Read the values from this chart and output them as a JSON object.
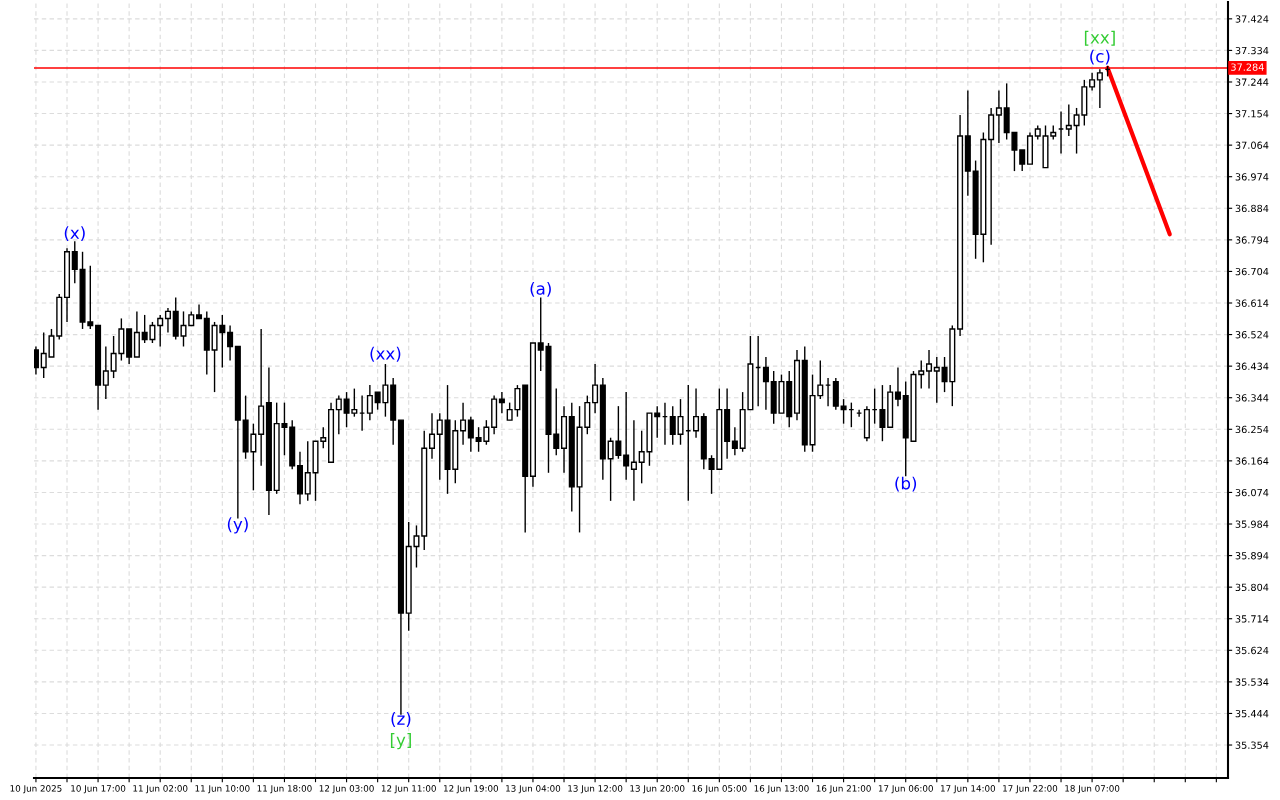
{
  "chart_data": {
    "type": "candlestick",
    "categories": [
      "10 Jun 2025",
      null,
      null,
      null,
      null,
      null,
      null,
      null,
      "10 Jun 17:00",
      null,
      null,
      null,
      null,
      null,
      null,
      null,
      "11 Jun 02:00",
      null,
      null,
      null,
      null,
      null,
      null,
      null,
      "11 Jun 10:00",
      null,
      null,
      null,
      null,
      null,
      null,
      null,
      "11 Jun 18:00",
      null,
      null,
      null,
      null,
      null,
      null,
      null,
      "12 Jun 03:00",
      null,
      null,
      null,
      null,
      null,
      null,
      null,
      "12 Jun 11:00",
      null,
      null,
      null,
      null,
      null,
      null,
      null,
      "12 Jun 19:00",
      null,
      null,
      null,
      null,
      null,
      null,
      null,
      "13 Jun 04:00",
      null,
      null,
      null,
      null,
      null,
      null,
      null,
      "13 Jun 12:00",
      null,
      null,
      null,
      null,
      null,
      null,
      null,
      "13 Jun 20:00",
      null,
      null,
      null,
      null,
      null,
      null,
      null,
      "16 Jun 05:00",
      null,
      null,
      null,
      null,
      null,
      null,
      null,
      "16 Jun 13:00",
      null,
      null,
      null,
      null,
      null,
      null,
      null,
      "16 Jun 21:00",
      null,
      null,
      null,
      null,
      null,
      null,
      null,
      "17 Jun 06:00",
      null,
      null,
      null,
      null,
      null,
      null,
      null,
      "17 Jun 14:00",
      null,
      null,
      null,
      null,
      null,
      null,
      null,
      "17 Jun 22:00",
      null,
      null,
      null,
      null,
      null,
      null,
      null,
      "18 Jun 07:00",
      null,
      null,
      null,
      null,
      null,
      null,
      null,
      null,
      null,
      null,
      null,
      null,
      null,
      null,
      null,
      null,
      null
    ],
    "ohlc": [
      [
        36.48,
        36.49,
        36.41,
        36.43
      ],
      [
        36.43,
        36.53,
        36.4,
        36.47
      ],
      [
        36.46,
        36.54,
        36.46,
        36.52
      ],
      [
        36.52,
        36.64,
        36.51,
        36.63
      ],
      [
        36.63,
        36.77,
        36.56,
        36.76
      ],
      [
        36.76,
        36.79,
        36.67,
        36.71
      ],
      [
        36.71,
        36.76,
        36.54,
        36.56
      ],
      [
        36.56,
        36.72,
        36.54,
        36.55
      ],
      [
        36.55,
        36.55,
        36.31,
        36.38
      ],
      [
        36.38,
        36.49,
        36.34,
        36.42
      ],
      [
        36.42,
        36.52,
        36.4,
        36.47
      ],
      [
        36.47,
        36.57,
        36.45,
        36.54
      ],
      [
        36.54,
        36.54,
        36.44,
        36.46
      ],
      [
        36.46,
        36.59,
        36.46,
        36.53
      ],
      [
        36.53,
        36.58,
        36.5,
        36.51
      ],
      [
        36.51,
        36.56,
        36.5,
        36.55
      ],
      [
        36.55,
        36.58,
        36.49,
        36.57
      ],
      [
        36.57,
        36.6,
        36.53,
        36.59
      ],
      [
        36.59,
        36.63,
        36.51,
        36.52
      ],
      [
        36.52,
        36.59,
        36.49,
        36.55
      ],
      [
        36.55,
        36.59,
        36.55,
        36.58
      ],
      [
        36.58,
        36.61,
        36.57,
        36.57
      ],
      [
        36.57,
        36.59,
        36.41,
        36.48
      ],
      [
        36.48,
        36.56,
        36.36,
        36.55
      ],
      [
        36.55,
        36.58,
        36.43,
        36.53
      ],
      [
        36.53,
        36.55,
        36.45,
        36.49
      ],
      [
        36.49,
        36.49,
        36.0,
        36.28
      ],
      [
        36.28,
        36.35,
        36.17,
        36.19
      ],
      [
        36.19,
        36.27,
        36.08,
        36.24
      ],
      [
        36.24,
        36.54,
        36.15,
        36.32
      ],
      [
        36.33,
        36.43,
        36.01,
        36.08
      ],
      [
        36.08,
        36.33,
        36.07,
        36.27
      ],
      [
        36.27,
        36.33,
        36.18,
        36.26
      ],
      [
        36.26,
        36.28,
        36.14,
        36.15
      ],
      [
        36.15,
        36.19,
        36.04,
        36.07
      ],
      [
        36.07,
        36.22,
        36.05,
        36.13
      ],
      [
        36.13,
        36.22,
        36.05,
        36.22
      ],
      [
        36.22,
        36.26,
        36.2,
        36.23
      ],
      [
        36.16,
        36.33,
        36.16,
        36.31
      ],
      [
        36.31,
        36.35,
        36.24,
        36.34
      ],
      [
        36.34,
        36.36,
        36.26,
        36.3
      ],
      [
        36.3,
        36.37,
        36.29,
        36.31
      ],
      [
        36.3,
        36.35,
        36.25,
        36.3
      ],
      [
        36.3,
        36.38,
        36.28,
        36.35
      ],
      [
        36.36,
        36.36,
        36.31,
        36.33
      ],
      [
        36.33,
        36.44,
        36.29,
        36.38
      ],
      [
        36.38,
        36.4,
        36.21,
        36.28
      ],
      [
        36.28,
        36.28,
        35.44,
        35.73
      ],
      [
        35.73,
        35.99,
        35.68,
        35.92
      ],
      [
        35.92,
        35.98,
        35.86,
        35.95
      ],
      [
        35.95,
        36.25,
        35.91,
        36.2
      ],
      [
        36.2,
        36.3,
        36.17,
        36.24
      ],
      [
        36.24,
        36.3,
        36.11,
        36.28
      ],
      [
        36.28,
        36.38,
        36.07,
        36.14
      ],
      [
        36.14,
        36.28,
        36.1,
        36.25
      ],
      [
        36.25,
        36.33,
        36.21,
        36.28
      ],
      [
        36.28,
        36.29,
        36.19,
        36.23
      ],
      [
        36.23,
        36.26,
        36.19,
        36.22
      ],
      [
        36.22,
        36.28,
        36.21,
        36.26
      ],
      [
        36.26,
        36.35,
        36.24,
        36.34
      ],
      [
        36.34,
        36.36,
        36.3,
        36.33
      ],
      [
        36.28,
        36.33,
        36.28,
        36.31
      ],
      [
        36.31,
        36.38,
        36.29,
        36.37
      ],
      [
        36.38,
        36.38,
        35.96,
        36.12
      ],
      [
        36.12,
        36.5,
        36.09,
        36.5
      ],
      [
        36.5,
        36.63,
        36.42,
        36.48
      ],
      [
        36.49,
        36.5,
        36.13,
        36.24
      ],
      [
        36.24,
        36.37,
        36.18,
        36.2
      ],
      [
        36.2,
        36.32,
        36.13,
        36.29
      ],
      [
        36.29,
        36.33,
        36.02,
        36.09
      ],
      [
        36.09,
        36.32,
        35.96,
        36.26
      ],
      [
        36.26,
        36.35,
        36.24,
        36.33
      ],
      [
        36.33,
        36.44,
        36.3,
        36.38
      ],
      [
        36.38,
        36.4,
        36.11,
        36.17
      ],
      [
        36.17,
        36.23,
        36.05,
        36.22
      ],
      [
        36.22,
        36.32,
        36.17,
        36.18
      ],
      [
        36.18,
        36.36,
        36.11,
        36.15
      ],
      [
        36.14,
        36.28,
        36.05,
        36.16
      ],
      [
        36.16,
        36.25,
        36.1,
        36.19
      ],
      [
        36.19,
        36.3,
        36.15,
        36.3
      ],
      [
        36.3,
        36.32,
        36.23,
        36.29
      ],
      [
        36.29,
        36.33,
        36.21,
        36.29
      ],
      [
        36.29,
        36.32,
        36.21,
        36.24
      ],
      [
        36.24,
        36.34,
        36.21,
        36.29
      ],
      [
        36.25,
        36.38,
        36.05,
        36.25
      ],
      [
        36.25,
        36.37,
        36.23,
        36.29
      ],
      [
        36.29,
        36.3,
        36.14,
        36.17
      ],
      [
        36.17,
        36.18,
        36.07,
        36.14
      ],
      [
        36.14,
        36.37,
        36.14,
        36.31
      ],
      [
        36.31,
        36.37,
        36.17,
        36.22
      ],
      [
        36.22,
        36.26,
        36.18,
        36.2
      ],
      [
        36.2,
        36.36,
        36.19,
        36.31
      ],
      [
        36.31,
        36.52,
        36.31,
        36.44
      ],
      [
        36.43,
        36.52,
        36.32,
        36.43
      ],
      [
        36.43,
        36.46,
        36.31,
        36.39
      ],
      [
        36.39,
        36.42,
        36.27,
        36.3
      ],
      [
        36.3,
        36.41,
        36.3,
        36.39
      ],
      [
        36.39,
        36.42,
        36.26,
        36.29
      ],
      [
        36.3,
        36.48,
        36.28,
        36.45
      ],
      [
        36.45,
        36.49,
        36.19,
        36.21
      ],
      [
        36.21,
        36.41,
        36.19,
        36.35
      ],
      [
        36.35,
        36.45,
        36.34,
        36.38
      ],
      [
        36.38,
        36.4,
        36.32,
        36.38
      ],
      [
        36.39,
        36.4,
        36.31,
        36.32
      ],
      [
        36.32,
        36.34,
        36.27,
        36.31
      ],
      [
        36.31,
        36.33,
        36.26,
        36.31
      ],
      [
        36.3,
        36.31,
        36.29,
        36.3
      ],
      [
        36.23,
        36.32,
        36.22,
        36.31
      ],
      [
        36.31,
        36.37,
        36.27,
        36.31
      ],
      [
        36.31,
        36.38,
        36.22,
        36.26
      ],
      [
        36.26,
        36.38,
        36.26,
        36.36
      ],
      [
        36.36,
        36.43,
        36.32,
        36.34
      ],
      [
        36.35,
        36.39,
        36.12,
        36.23
      ],
      [
        36.22,
        36.42,
        36.22,
        36.41
      ],
      [
        36.41,
        36.45,
        36.37,
        36.42
      ],
      [
        36.42,
        36.48,
        36.37,
        36.44
      ],
      [
        36.42,
        36.46,
        36.33,
        36.43
      ],
      [
        36.43,
        36.46,
        36.36,
        36.39
      ],
      [
        36.39,
        36.55,
        36.32,
        36.54
      ],
      [
        36.54,
        37.15,
        36.52,
        37.09
      ],
      [
        37.09,
        37.22,
        36.92,
        36.99
      ],
      [
        36.99,
        37.02,
        36.74,
        36.81
      ],
      [
        36.81,
        37.1,
        36.73,
        37.08
      ],
      [
        37.08,
        37.17,
        36.78,
        37.15
      ],
      [
        37.15,
        37.22,
        37.07,
        37.17
      ],
      [
        37.17,
        37.24,
        37.08,
        37.1
      ],
      [
        37.1,
        37.1,
        36.99,
        37.05
      ],
      [
        37.05,
        37.05,
        36.99,
        37.01
      ],
      [
        37.01,
        37.1,
        37.01,
        37.09
      ],
      [
        37.09,
        37.12,
        37.08,
        37.11
      ],
      [
        37.0,
        37.12,
        37.0,
        37.09
      ],
      [
        37.09,
        37.12,
        37.08,
        37.1
      ],
      [
        37.11,
        37.16,
        37.04,
        37.11
      ],
      [
        37.11,
        37.18,
        37.09,
        37.12
      ],
      [
        37.12,
        37.17,
        37.04,
        37.15
      ],
      [
        37.15,
        37.25,
        37.12,
        37.23
      ],
      [
        37.23,
        37.27,
        37.22,
        37.25
      ],
      [
        37.25,
        37.28,
        37.17,
        37.27
      ],
      [
        37.28,
        37.29,
        37.26,
        37.28
      ],
      null,
      null,
      null,
      null,
      null,
      null,
      null,
      null,
      null,
      null,
      null,
      null,
      null,
      null,
      null
    ],
    "series": [
      {
        "type": "line",
        "color": "#ff0000",
        "values": [
          null,
          null,
          null,
          null,
          null,
          null,
          null,
          null,
          null,
          null,
          null,
          null,
          null,
          null,
          null,
          null,
          null,
          null,
          null,
          null,
          null,
          null,
          null,
          null,
          null,
          null,
          null,
          null,
          null,
          null,
          null,
          null,
          null,
          null,
          null,
          null,
          null,
          null,
          null,
          null,
          null,
          null,
          null,
          null,
          null,
          null,
          null,
          null,
          null,
          null,
          null,
          null,
          null,
          null,
          null,
          null,
          null,
          null,
          null,
          null,
          null,
          null,
          null,
          null,
          null,
          null,
          null,
          null,
          null,
          null,
          null,
          null,
          null,
          null,
          null,
          null,
          null,
          null,
          null,
          null,
          null,
          null,
          null,
          null,
          null,
          null,
          null,
          null,
          null,
          null,
          null,
          null,
          null,
          null,
          null,
          null,
          null,
          null,
          null,
          null,
          null,
          null,
          null,
          null,
          null,
          null,
          null,
          null,
          null,
          null,
          null,
          null,
          null,
          null,
          null,
          null,
          null,
          null,
          null,
          null,
          null,
          null,
          null,
          null,
          null,
          null,
          null,
          null,
          null,
          null,
          null,
          null,
          null,
          null,
          null,
          null,
          null,
          null,
          37.284,
          null,
          null,
          null,
          null,
          null,
          null,
          null,
          36.81,
          null,
          null,
          null,
          null,
          null,
          null,
          null
        ]
      }
    ],
    "ylim": [
      35.26,
      37.472
    ],
    "yticks": [
      35.354,
      35.444,
      35.534,
      35.624,
      35.714,
      35.804,
      35.894,
      35.984,
      36.074,
      36.164,
      36.254,
      36.344,
      36.434,
      36.524,
      36.614,
      36.704,
      36.794,
      36.884,
      36.974,
      37.064,
      37.154,
      37.244,
      37.334,
      37.424
    ],
    "grid": true,
    "ref_lines": [
      {
        "axis": "y",
        "value": 37.284,
        "label": "37.284",
        "color": "#ff0000"
      }
    ],
    "annotations": [
      "(x)",
      "(y)",
      "(xx)",
      "(z)",
      "[y]",
      "(a)",
      "(b)",
      "(c)",
      "[xx]"
    ]
  }
}
